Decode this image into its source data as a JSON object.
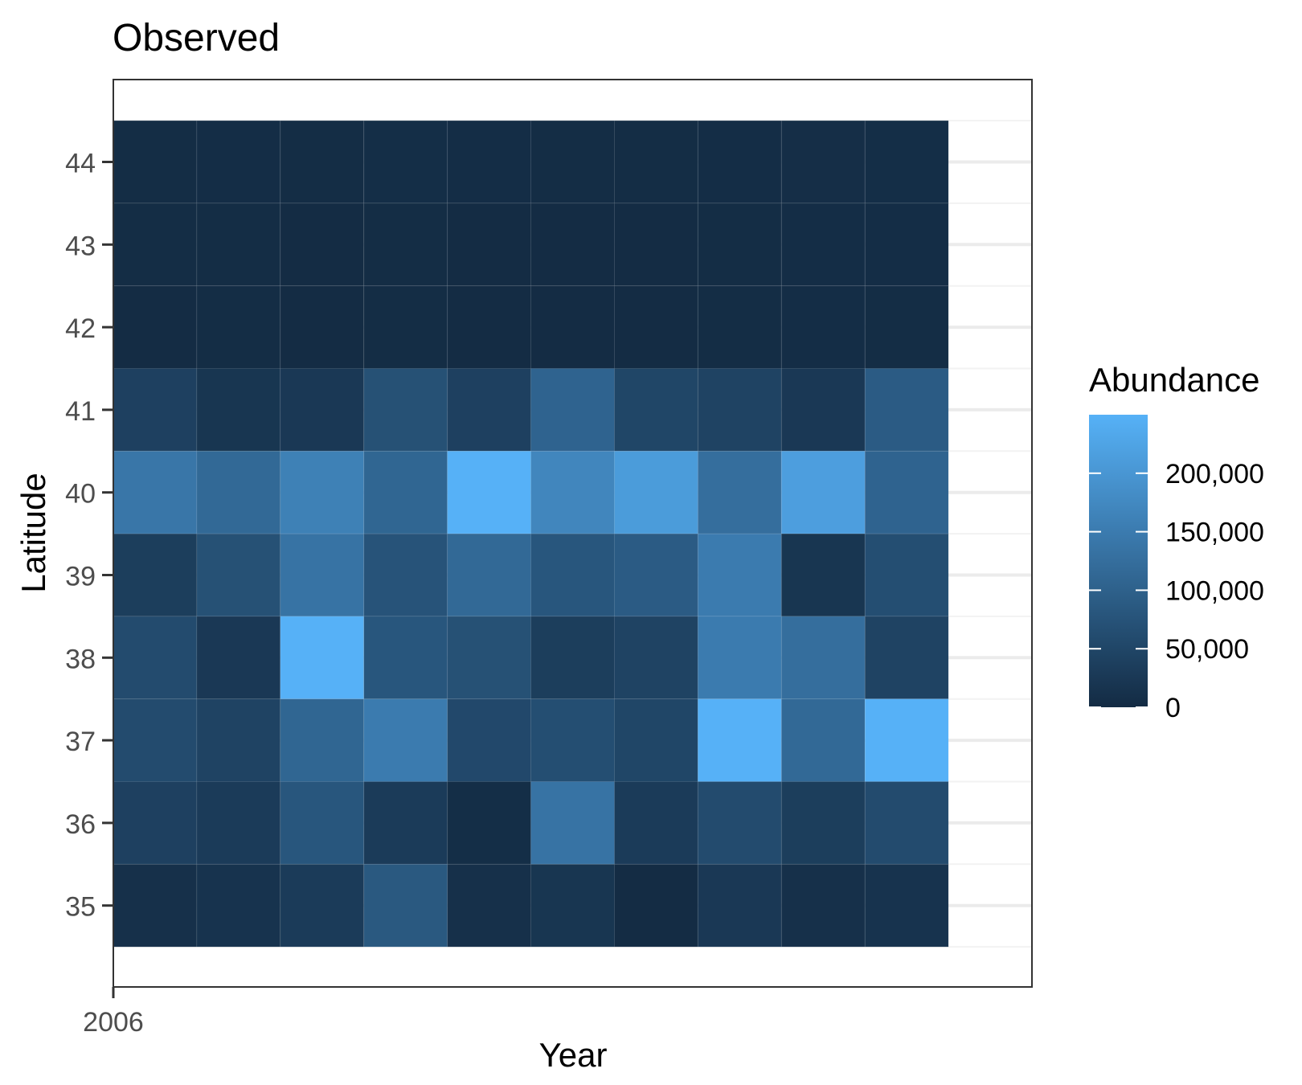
{
  "chart_data": {
    "type": "heatmap",
    "title": "Observed",
    "xlabel": "Year",
    "ylabel": "Latitude",
    "x_tick_labels": [
      "2006"
    ],
    "x_tick_values": [
      2006
    ],
    "xlim": [
      2006,
      2017
    ],
    "x": [
      2006.5,
      2007.5,
      2008.5,
      2009.5,
      2010.5,
      2011.5,
      2012.5,
      2013.5,
      2014.5,
      2015.5
    ],
    "y": [
      44,
      43,
      42,
      41,
      40,
      39,
      38,
      37,
      36,
      35
    ],
    "ylim": [
      34,
      45
    ],
    "y_ticks": [
      44,
      43,
      42,
      41,
      40,
      39,
      38,
      37,
      36,
      35
    ],
    "values": [
      [
        3000,
        4000,
        3000,
        5000,
        4000,
        3000,
        3000,
        4000,
        6000,
        5000
      ],
      [
        3000,
        3000,
        2000,
        3000,
        2000,
        2000,
        2000,
        3000,
        4000,
        4000
      ],
      [
        2000,
        3000,
        2000,
        3000,
        2000,
        2000,
        2000,
        3000,
        4000,
        3000
      ],
      [
        40000,
        20000,
        25000,
        70000,
        40000,
        105000,
        50000,
        45000,
        25000,
        90000
      ],
      [
        140000,
        115000,
        160000,
        110000,
        250000,
        170000,
        210000,
        125000,
        215000,
        105000
      ],
      [
        35000,
        70000,
        135000,
        75000,
        115000,
        80000,
        90000,
        150000,
        20000,
        65000
      ],
      [
        60000,
        25000,
        260000,
        80000,
        70000,
        35000,
        45000,
        150000,
        125000,
        45000
      ],
      [
        60000,
        45000,
        110000,
        150000,
        55000,
        65000,
        50000,
        250000,
        115000,
        260000
      ],
      [
        40000,
        30000,
        80000,
        30000,
        5000,
        135000,
        30000,
        60000,
        35000,
        60000
      ],
      [
        10000,
        15000,
        30000,
        85000,
        10000,
        20000,
        2000,
        25000,
        10000,
        15000
      ]
    ],
    "legend": {
      "title": "Abundance",
      "placement": "right",
      "breaks": [
        0,
        50000,
        100000,
        150000,
        200000
      ],
      "labels": [
        "0",
        "50,000",
        "100,000",
        "150,000",
        "200,000"
      ],
      "limits": [
        0,
        250000
      ],
      "low_color": "#132B43",
      "high_color": "#56B1F7"
    },
    "grid": true,
    "panel_border": true
  }
}
